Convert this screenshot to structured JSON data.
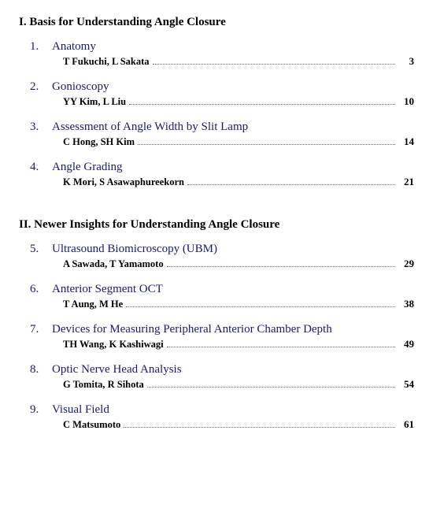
{
  "sections": [
    {
      "heading": "I. Basis for Understanding Angle Closure",
      "chapters": [
        {
          "num": "1.",
          "title": "Anatomy",
          "authors": "T Fukuchi, L Sakata",
          "page": "3"
        },
        {
          "num": "2.",
          "title": "Gonioscopy",
          "authors": "YY Kim, L Liu",
          "page": "10"
        },
        {
          "num": "3.",
          "title": "Assessment of Angle Width by Slit Lamp",
          "authors": "C Hong, SH Kim",
          "page": "14"
        },
        {
          "num": "4.",
          "title": "Angle Grading",
          "authors": "K Mori, S Asawaphureekorn",
          "page": "21"
        }
      ]
    },
    {
      "heading": "II. Newer Insights for Understanding Angle Closure",
      "chapters": [
        {
          "num": "5.",
          "title": "Ultrasound Biomicroscopy (UBM)",
          "authors": "A Sawada, T Yamamoto",
          "page": "29"
        },
        {
          "num": "6.",
          "title": "Anterior Segment OCT",
          "authors": "T Aung, M He",
          "page": "38"
        },
        {
          "num": "7.",
          "title": "Devices for Measuring Peripheral Anterior Chamber Depth",
          "authors": "TH Wang, K Kashiwagi",
          "page": "49"
        },
        {
          "num": "8.",
          "title": "Optic Nerve Head Analysis",
          "authors": "G Tomita, R Sihota",
          "page": "54"
        },
        {
          "num": "9.",
          "title": "Visual Field",
          "authors": "C Matsumoto",
          "page": "61"
        }
      ]
    }
  ],
  "styles": {
    "link_color": "#191970",
    "text_color": "#000000",
    "background_color": "#ffffff",
    "leader_color": "#666666",
    "heading_fontsize": 15,
    "chapter_fontsize": 15,
    "author_fontsize": 12.5,
    "page_fontsize": 13
  }
}
